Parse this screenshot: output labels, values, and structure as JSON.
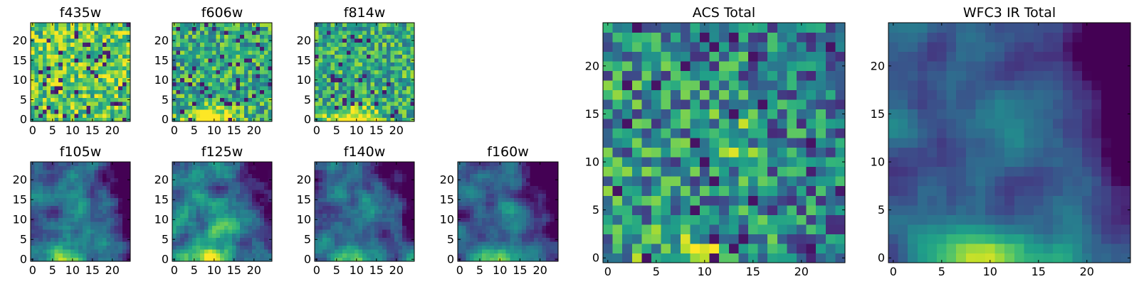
{
  "figure": {
    "colormap": "viridis",
    "colormap_stops": [
      "#440154",
      "#482878",
      "#3e4989",
      "#31688e",
      "#26828e",
      "#1f9e89",
      "#35b779",
      "#6ece58",
      "#b5de2b",
      "#fde725"
    ]
  },
  "chart_data": [
    {
      "type": "heatmap",
      "title": "f435w",
      "grid": [
        25,
        25
      ],
      "xlim": [
        -0.5,
        24.5
      ],
      "ylim": [
        -0.5,
        24.5
      ],
      "xticks": [
        0,
        5,
        10,
        15,
        20
      ],
      "yticks": [
        0,
        5,
        10,
        15,
        20
      ],
      "origin": "lower",
      "seed": 11,
      "pattern": "noise-bright"
    },
    {
      "type": "heatmap",
      "title": "f606w",
      "grid": [
        25,
        25
      ],
      "xlim": [
        -0.5,
        24.5
      ],
      "ylim": [
        -0.5,
        24.5
      ],
      "xticks": [
        0,
        5,
        10,
        15,
        20
      ],
      "yticks": [
        0,
        5,
        10,
        15,
        20
      ],
      "origin": "lower",
      "seed": 22,
      "pattern": "noise-bottom-blob"
    },
    {
      "type": "heatmap",
      "title": "f814w",
      "grid": [
        25,
        25
      ],
      "xlim": [
        -0.5,
        24.5
      ],
      "ylim": [
        -0.5,
        24.5
      ],
      "xticks": [
        0,
        5,
        10,
        15,
        20
      ],
      "yticks": [
        0,
        5,
        10,
        15,
        20
      ],
      "origin": "lower",
      "seed": 33,
      "pattern": "noise-bottom-blob"
    },
    {
      "type": "heatmap",
      "title": "f105w",
      "grid": [
        25,
        25
      ],
      "xlim": [
        -0.5,
        24.5
      ],
      "ylim": [
        -0.5,
        24.5
      ],
      "xticks": [
        0,
        5,
        10,
        15,
        20
      ],
      "yticks": [
        0,
        5,
        10,
        15,
        20
      ],
      "origin": "lower",
      "seed": 44,
      "pattern": "ir"
    },
    {
      "type": "heatmap",
      "title": "f125w",
      "grid": [
        25,
        25
      ],
      "xlim": [
        -0.5,
        24.5
      ],
      "ylim": [
        -0.5,
        24.5
      ],
      "xticks": [
        0,
        5,
        10,
        15,
        20
      ],
      "yticks": [
        0,
        5,
        10,
        15,
        20
      ],
      "origin": "lower",
      "seed": 55,
      "pattern": "ir-bright"
    },
    {
      "type": "heatmap",
      "title": "f140w",
      "grid": [
        25,
        25
      ],
      "xlim": [
        -0.5,
        24.5
      ],
      "ylim": [
        -0.5,
        24.5
      ],
      "xticks": [
        0,
        5,
        10,
        15,
        20
      ],
      "yticks": [
        0,
        5,
        10,
        15,
        20
      ],
      "origin": "lower",
      "seed": 66,
      "pattern": "ir"
    },
    {
      "type": "heatmap",
      "title": "f160w",
      "grid": [
        25,
        25
      ],
      "xlim": [
        -0.5,
        24.5
      ],
      "ylim": [
        -0.5,
        24.5
      ],
      "xticks": [
        0,
        5,
        10,
        15,
        20
      ],
      "yticks": [
        0,
        5,
        10,
        15,
        20
      ],
      "origin": "lower",
      "seed": 77,
      "pattern": "ir-dark"
    },
    {
      "type": "heatmap",
      "title": "ACS Total",
      "grid": [
        25,
        25
      ],
      "xlim": [
        -0.5,
        24.5
      ],
      "ylim": [
        -0.5,
        24.5
      ],
      "xticks": [
        0,
        5,
        10,
        15,
        20
      ],
      "yticks": [
        0,
        5,
        10,
        15,
        20
      ],
      "origin": "lower",
      "seed": 88,
      "pattern": "acs-total"
    },
    {
      "type": "heatmap",
      "title": "WFC3 IR Total",
      "grid": [
        25,
        25
      ],
      "xlim": [
        -0.5,
        24.5
      ],
      "ylim": [
        -0.5,
        24.5
      ],
      "xticks": [
        0,
        5,
        10,
        15,
        20
      ],
      "yticks": [
        0,
        5,
        10,
        15,
        20
      ],
      "origin": "lower",
      "seed": 99,
      "pattern": "ir-total"
    }
  ]
}
